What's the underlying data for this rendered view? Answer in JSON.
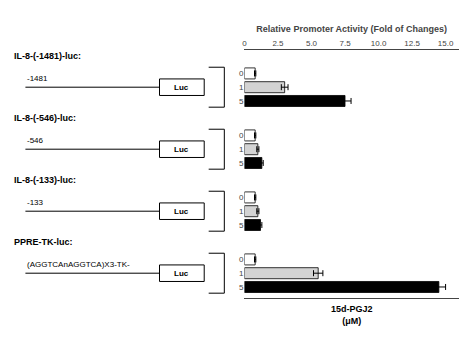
{
  "chart_data": {
    "type": "bar",
    "orientation": "horizontal",
    "xlabel": "Relative Promoter Activity (Fold of Changes)",
    "annotation": "15d-PGJ2\n(μM)",
    "box_label": "Luc",
    "xlim": [
      0,
      16.0
    ],
    "xticks": [
      0,
      2.5,
      {
        "value": 5.0,
        "label": "5.0"
      },
      7.5,
      {
        "value": 10.0,
        "label": "10.0"
      },
      12.5,
      {
        "value": 15.0,
        "label": "15.0"
      }
    ],
    "grid": false,
    "series": [
      {
        "name": "IL-8-(-1481)-luc:",
        "line_label": "-1481",
        "categories": [
          "0",
          "1",
          "5"
        ],
        "values": [
          0.8,
          3.0,
          7.5
        ],
        "errors": [
          0.05,
          0.25,
          0.45
        ],
        "colors": [
          "white",
          "lightgray",
          "black"
        ]
      },
      {
        "name": "IL-8-(-546)-luc:",
        "line_label": "-546",
        "categories": [
          "0",
          "1",
          "5"
        ],
        "values": [
          0.8,
          1.0,
          1.3
        ],
        "errors": [
          0.05,
          0.08,
          0.1
        ],
        "colors": [
          "white",
          "lightgray",
          "black"
        ]
      },
      {
        "name": "IL-8-(-133)-luc:",
        "line_label": "-133",
        "categories": [
          "0",
          "1",
          "5"
        ],
        "values": [
          0.8,
          1.0,
          1.2
        ],
        "errors": [
          0.05,
          0.08,
          0.1
        ],
        "colors": [
          "white",
          "lightgray",
          "black"
        ]
      },
      {
        "name": "PPRE-TK-luc:",
        "line_label": "(AGGTCAnAGGTCA)X3-TK-",
        "categories": [
          "0",
          "1",
          "5"
        ],
        "values": [
          0.8,
          5.5,
          14.5
        ],
        "errors": [
          0.05,
          0.35,
          0.5
        ],
        "colors": [
          "white",
          "lightgray",
          "black"
        ]
      }
    ]
  }
}
